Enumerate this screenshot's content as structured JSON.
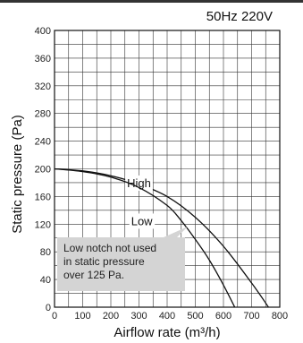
{
  "chart_data": {
    "type": "line",
    "title": "",
    "condition": "50Hz 220V",
    "xlabel": "Airflow rate (m³/h)",
    "ylabel": "Static pressure (Pa)",
    "xlim": [
      0,
      800
    ],
    "ylim": [
      0,
      400
    ],
    "x_ticks": [
      "0",
      "100",
      "200",
      "300",
      "400",
      "500",
      "600",
      "700",
      "800"
    ],
    "y_ticks": [
      "0",
      "40",
      "80",
      "120",
      "160",
      "200",
      "240",
      "280",
      "320",
      "360",
      "400"
    ],
    "grid": true,
    "series": [
      {
        "name": "High",
        "x": [
          0,
          100,
          200,
          300,
          400,
          500,
          600,
          700,
          760
        ],
        "y": [
          200,
          197,
          190,
          178,
          160,
          130,
          88,
          35,
          0
        ]
      },
      {
        "name": "Low",
        "x": [
          0,
          100,
          200,
          300,
          400,
          450,
          500,
          550,
          600,
          640
        ],
        "y": [
          200,
          196,
          188,
          173,
          147,
          125,
          98,
          68,
          32,
          0
        ]
      }
    ],
    "annotation": {
      "lines": [
        "Low notch not used",
        "in static pressure",
        "over 125 Pa."
      ]
    }
  }
}
